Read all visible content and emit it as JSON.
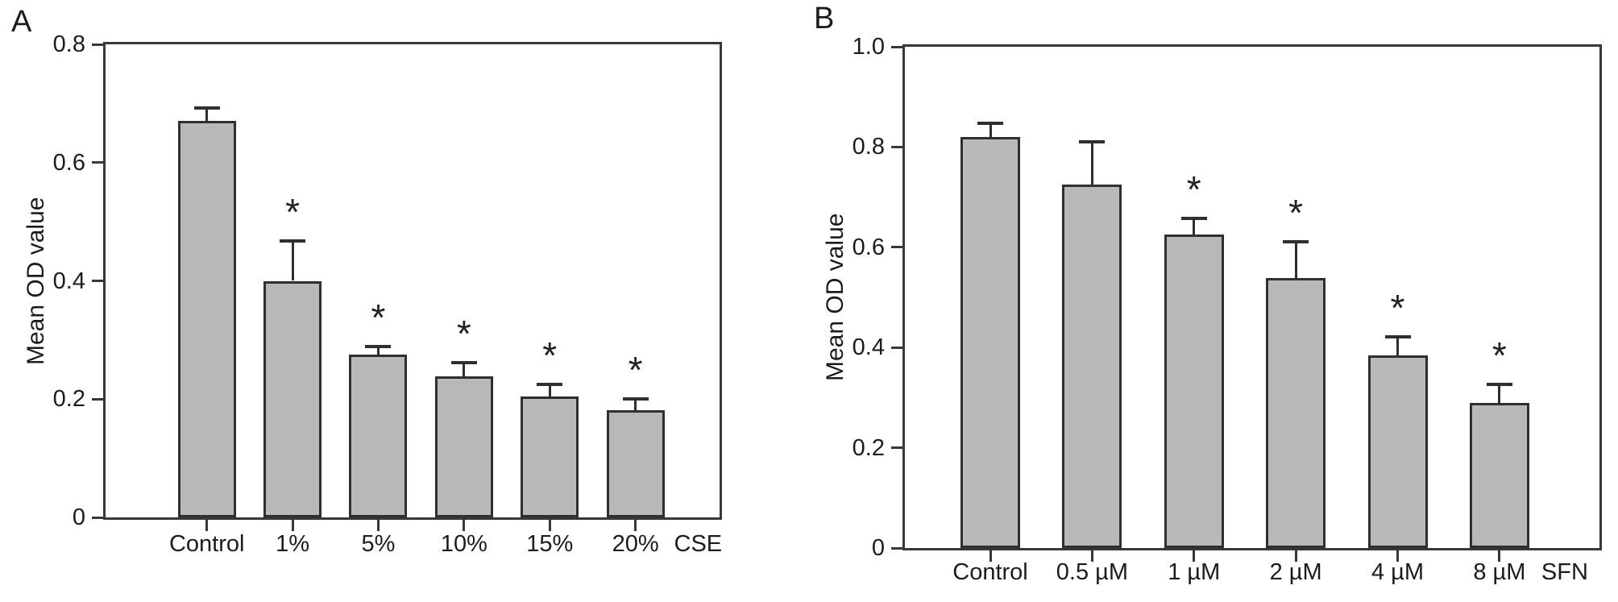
{
  "figure": {
    "background": "#ffffff",
    "significance_marker": "*"
  },
  "colors": {
    "bar_fill": "#b9b9b9",
    "bar_border": "#2f2f2f",
    "axis": "#383838",
    "text": "#1c1c1c"
  },
  "chart_data": [
    {
      "type": "bar",
      "panel_label": "A",
      "title": "",
      "ylabel": "Mean OD value",
      "xlabel": "CSE",
      "ylim": [
        0,
        0.8
      ],
      "ytick_interval": 0.2,
      "ytick_labels": [
        "0",
        "0.2",
        "0.4",
        "0.6",
        "0.8"
      ],
      "grid": false,
      "legend": null,
      "categories": [
        "Control",
        "1%",
        "5%",
        "10%",
        "15%",
        "20%"
      ],
      "values": [
        0.67,
        0.4,
        0.275,
        0.238,
        0.205,
        0.181
      ],
      "errors_upper": [
        0.022,
        0.068,
        0.014,
        0.024,
        0.02,
        0.019
      ],
      "significant": [
        false,
        true,
        true,
        true,
        true,
        true
      ]
    },
    {
      "type": "bar",
      "panel_label": "B",
      "title": "",
      "ylabel": "Mean OD value",
      "xlabel": "SFN",
      "ylim": [
        0,
        1.0
      ],
      "ytick_interval": 0.2,
      "ytick_labels": [
        "0",
        "0.2",
        "0.4",
        "0.6",
        "0.8",
        "1.0"
      ],
      "grid": false,
      "legend": null,
      "categories": [
        "Control",
        "0.5 µM",
        "1 µM",
        "2 µM",
        "4 µM",
        "8 µM"
      ],
      "values": [
        0.82,
        0.725,
        0.625,
        0.538,
        0.385,
        0.29
      ],
      "errors_upper": [
        0.028,
        0.085,
        0.033,
        0.073,
        0.036,
        0.036
      ],
      "significant": [
        false,
        false,
        true,
        true,
        true,
        true
      ]
    }
  ]
}
